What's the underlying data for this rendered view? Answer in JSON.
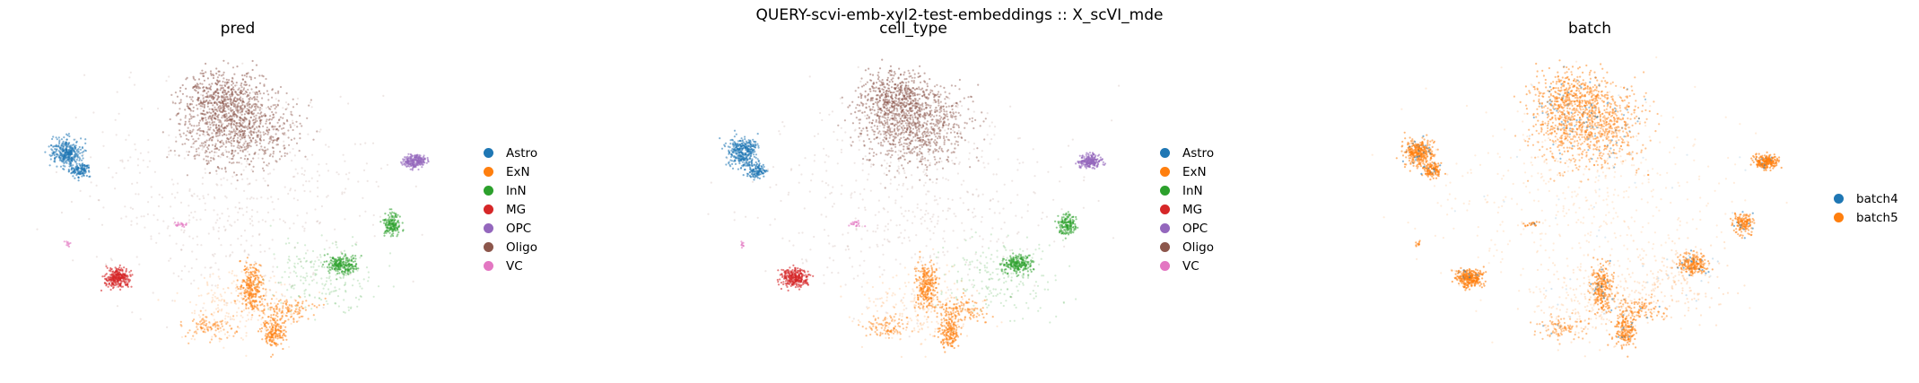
{
  "suptitle": "QUERY-scvi-emb-xyl2-test-embeddings :: X_scVI_mde",
  "colors": {
    "Astro": "#1f77b4",
    "ExN": "#ff7f0e",
    "InN": "#2ca02c",
    "MG": "#d62728",
    "OPC": "#9467bd",
    "Oligo": "#8c564b",
    "VC": "#e377c2",
    "batch4": "#1f77b4",
    "batch5": "#ff7f0e"
  },
  "chart_data": [
    {
      "type": "scatter",
      "title": "pred",
      "legend": [
        "Astro",
        "ExN",
        "InN",
        "MG",
        "OPC",
        "Oligo",
        "VC"
      ],
      "legend_placement": "right",
      "axes": "off",
      "grid": false
    },
    {
      "type": "scatter",
      "title": "cell_type",
      "legend": [
        "Astro",
        "ExN",
        "InN",
        "MG",
        "OPC",
        "Oligo",
        "VC"
      ],
      "legend_placement": "right",
      "axes": "off",
      "grid": false
    },
    {
      "type": "scatter",
      "title": "batch",
      "legend": [
        "batch4",
        "batch5"
      ],
      "legend_placement": "right",
      "axes": "off",
      "grid": false
    }
  ]
}
